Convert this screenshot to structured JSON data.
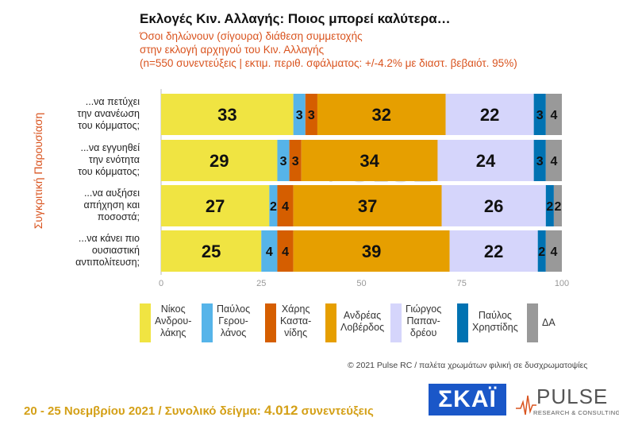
{
  "title": "Εκλογές Κιν. Αλλαγής: Ποιος μπορεί καλύτερα…",
  "subtitle_lines": [
    "Όσοι δηλώνουν (σίγουρα) διάθεση συμμετοχής",
    "στην εκλογή αρχηγού του Κιν. Αλλαγής",
    "(n=550 συνεντεύξεις | εκτιμ. περιθ. σφάλματος: +/-4.2% με διαστ. βεβαιότ. 95%)"
  ],
  "side_label": "Συγκριτική  Παρουσίαση",
  "copyright": "© 2021 Pulse RC   /   παλέτα χρωμάτων φιλική σε δυσχρωματοψίες",
  "footer": {
    "dates": "20 - 25  Νοεμβρίου 2021  /  Συνολικό δείγμα:",
    "sample": "4.012",
    "suffix": "συνεντεύξεις"
  },
  "logos": {
    "skai": "ΣΚΑΪ",
    "pulse": "PULSE",
    "pulse_sub": "RESEARCH & CONSULTING"
  },
  "chart_data": {
    "type": "bar",
    "orientation": "horizontal",
    "stacked": true,
    "xlim": [
      0,
      100
    ],
    "x_ticks": [
      0,
      25,
      50,
      75,
      100
    ],
    "grid": false,
    "legend_position": "bottom",
    "categories": [
      [
        "...να πετύχει",
        "την ανανέωση",
        "του κόμματος;"
      ],
      [
        "...να εγγυηθεί",
        "την ενότητα",
        "του κόμματος;"
      ],
      [
        "...να αυξήσει",
        "απήχηση και",
        "ποσοστά;"
      ],
      [
        "...να κάνει πιο",
        "ουσιαστική",
        "αντιπολίτευση;"
      ]
    ],
    "series": [
      {
        "name": [
          "Νίκος",
          "Ανδρου-",
          "λάκης"
        ],
        "color": "#f0e442",
        "values": [
          33,
          29,
          27,
          25
        ]
      },
      {
        "name": [
          "Παύλος",
          "Γερου-",
          "λάνος"
        ],
        "color": "#56b4e9",
        "values": [
          3,
          3,
          2,
          4
        ]
      },
      {
        "name": [
          "Χάρης",
          "Καστα-",
          "νίδης"
        ],
        "color": "#d55e00",
        "values": [
          3,
          3,
          4,
          4
        ]
      },
      {
        "name": [
          "Ανδρέας",
          "Λοβέρδος"
        ],
        "color": "#e69f00",
        "values": [
          32,
          34,
          37,
          39
        ]
      },
      {
        "name": [
          "Γιώργος",
          "Παπαν-",
          "δρέου"
        ],
        "color": "#d5d5fb",
        "values": [
          22,
          24,
          26,
          22
        ]
      },
      {
        "name": [
          "Παύλος",
          "Χρηστίδης"
        ],
        "color": "#0072b2",
        "values": [
          3,
          3,
          2,
          2
        ]
      },
      {
        "name": [
          "ΔΑ"
        ],
        "color": "#999999",
        "values": [
          4,
          4,
          2,
          4
        ]
      }
    ]
  }
}
